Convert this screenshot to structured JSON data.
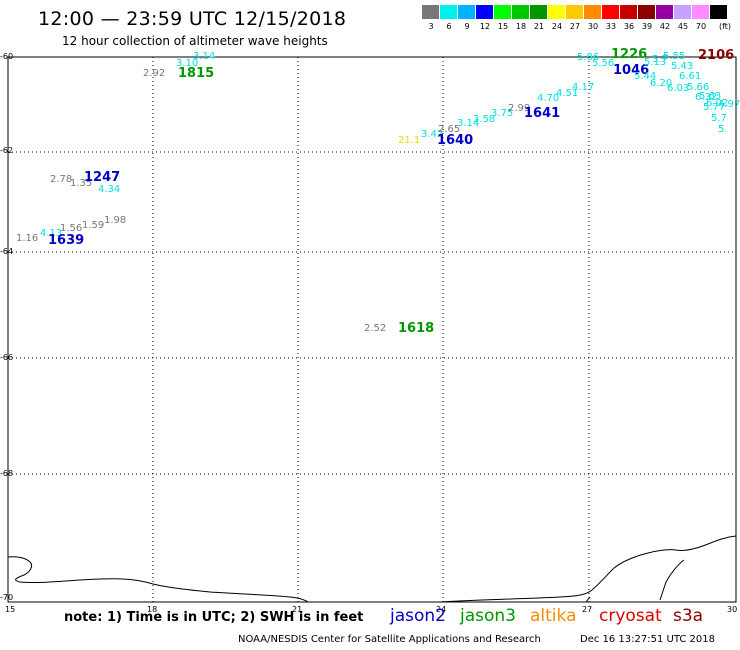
{
  "header": {
    "title": "12:00 — 23:59 UTC 12/15/2018",
    "subtitle": "12 hour collection of altimeter wave heights"
  },
  "legend": {
    "unit": "(ft)",
    "items": [
      {
        "label": "3",
        "color": "#787878"
      },
      {
        "label": "6",
        "color": "#00f0f0"
      },
      {
        "label": "9",
        "color": "#00b4ff"
      },
      {
        "label": "12",
        "color": "#0000ff"
      },
      {
        "label": "15",
        "color": "#00ff00"
      },
      {
        "label": "18",
        "color": "#00c800"
      },
      {
        "label": "21",
        "color": "#009600"
      },
      {
        "label": "24",
        "color": "#ffff00"
      },
      {
        "label": "27",
        "color": "#ffc800"
      },
      {
        "label": "30",
        "color": "#ff8c00"
      },
      {
        "label": "33",
        "color": "#ff0000"
      },
      {
        "label": "36",
        "color": "#c80000"
      },
      {
        "label": "39",
        "color": "#8c0000"
      },
      {
        "label": "42",
        "color": "#9600a0"
      },
      {
        "label": "45",
        "color": "#c8a0ff"
      },
      {
        "label": "70",
        "color": "#ff8cff"
      },
      {
        "label": "",
        "color": "#000000"
      }
    ]
  },
  "axes": {
    "lat_labels": [
      "-60",
      "-62",
      "-64",
      "-66",
      "-68",
      "-70"
    ],
    "lon_labels": [
      "15",
      "18",
      "21",
      "24",
      "27",
      "30"
    ]
  },
  "map_data": {
    "observations": [
      {
        "text": "3.14",
        "color": "#00e0e0"
      },
      {
        "text": "3.10",
        "color": "#00e0e0"
      },
      {
        "text": "2.92",
        "color": "#787878"
      },
      {
        "text": "1815",
        "color": "#009600",
        "kind": "time"
      },
      {
        "text": "2.78",
        "color": "#787878"
      },
      {
        "text": "1.35",
        "color": "#787878"
      },
      {
        "text": "1247",
        "color": "#0000c8",
        "kind": "time"
      },
      {
        "text": "4.34",
        "color": "#00e0e0"
      },
      {
        "text": "1.98",
        "color": "#787878"
      },
      {
        "text": "1.59",
        "color": "#787878"
      },
      {
        "text": "1.56",
        "color": "#787878"
      },
      {
        "text": "4.13",
        "color": "#00e0e0"
      },
      {
        "text": "1.16",
        "color": "#787878"
      },
      {
        "text": "1639",
        "color": "#0000c8",
        "kind": "time"
      },
      {
        "text": "2.52",
        "color": "#787878"
      },
      {
        "text": "1618",
        "color": "#009600",
        "kind": "time"
      },
      {
        "text": "21.1",
        "color": "#e0e000"
      },
      {
        "text": "3.42",
        "color": "#00e0e0"
      },
      {
        "text": "2.65",
        "color": "#787878"
      },
      {
        "text": "1640",
        "color": "#0000c8",
        "kind": "time"
      },
      {
        "text": "3.14",
        "color": "#00e0e0"
      },
      {
        "text": "3.58",
        "color": "#00e0e0"
      },
      {
        "text": "3.75",
        "color": "#00e0e0"
      },
      {
        "text": "2.99",
        "color": "#787878"
      },
      {
        "text": "1641",
        "color": "#0000c8",
        "kind": "time"
      },
      {
        "text": "4.70",
        "color": "#00e0e0"
      },
      {
        "text": "4.51",
        "color": "#00e0e0"
      },
      {
        "text": "4.17",
        "color": "#00e0e0"
      },
      {
        "text": "5.86",
        "color": "#00e0e0"
      },
      {
        "text": "5.56",
        "color": "#00e0e0"
      },
      {
        "text": "1226",
        "color": "#009600",
        "kind": "time"
      },
      {
        "text": "1046",
        "color": "#0000c8",
        "kind": "time"
      },
      {
        "text": "5.13",
        "color": "#00e0e0"
      },
      {
        "text": "5.7",
        "color": "#00e0e0"
      },
      {
        "text": "5.55",
        "color": "#00e0e0"
      },
      {
        "text": "2106",
        "color": "#8c0000",
        "kind": "time"
      },
      {
        "text": "5.44",
        "color": "#00e0e0"
      },
      {
        "text": "5.43",
        "color": "#00e0e0"
      },
      {
        "text": "6.61",
        "color": "#00e0e0"
      },
      {
        "text": "6.20",
        "color": "#00e0e0"
      },
      {
        "text": "6.03",
        "color": "#00e0e0"
      },
      {
        "text": "5.66",
        "color": "#00e0e0"
      },
      {
        "text": "5.63",
        "color": "#00e0e0"
      },
      {
        "text": "6.32",
        "color": "#00e0e0"
      },
      {
        "text": "6.02",
        "color": "#00e0e0"
      },
      {
        "text": "5.77",
        "color": "#00e0e0"
      },
      {
        "text": "4.97",
        "color": "#00e0e0"
      },
      {
        "text": "5.7",
        "color": "#00e0e0"
      },
      {
        "text": "5.",
        "color": "#00e0e0"
      }
    ]
  },
  "footer": {
    "note": "note: 1) Time is in UTC; 2) SWH is in feet",
    "satellites": [
      {
        "name": "jason2",
        "color": "#0000c8"
      },
      {
        "name": "jason3",
        "color": "#009600"
      },
      {
        "name": "altika",
        "color": "#ff8c00"
      },
      {
        "name": "cryosat",
        "color": "#dc0000"
      },
      {
        "name": "s3a",
        "color": "#8c0000"
      }
    ],
    "credit": "NOAA/NESDIS Center for Satellite Applications and Research",
    "generated": "Dec 16 13:27:51 UTC 2018"
  }
}
